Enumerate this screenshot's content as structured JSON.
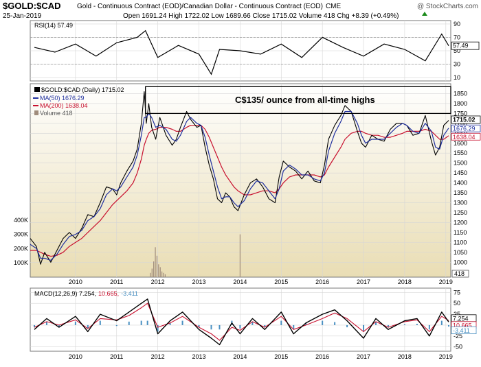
{
  "header": {
    "symbol": "$GOLD:$CAD",
    "description": "Gold - Continuous Contract (EOD)/Canadian Dollar - Continuous Contract (EOD)",
    "exchange": "CME",
    "watermark": "@ StockCharts.com",
    "date": "25-Jan-2019",
    "ohlc": "Open 1691.24 High 1722.02 Low 1689.66 Close 1715.02 Volume 418 Chg +8.39 (+0.49%)",
    "ohlc_arrow": "up-arrow-icon"
  },
  "colors": {
    "price_bg_top": "#ffffff",
    "price_bg_bottom": "#e9ddb4",
    "price_line": "#000000",
    "ma50": "#1f2f9e",
    "ma200": "#c8102e",
    "volume": "#a08c7c",
    "macd_line": "#000000",
    "signal_line": "#c8102e",
    "histogram": "#4a90c2"
  },
  "chart_data": [
    {
      "type": "line",
      "panel": "rsi",
      "legend": "RSI(14) 57.49",
      "current": 57.49,
      "current_label": "57.49",
      "ylim": [
        5,
        95
      ],
      "yticks": [
        {
          "v": 90,
          "label": "90"
        },
        {
          "v": 70,
          "label": "70"
        },
        {
          "v": 50,
          "label": "50"
        },
        {
          "v": 30,
          "label": "30"
        },
        {
          "v": 10,
          "label": "10"
        }
      ],
      "reference_lines": [
        30,
        70
      ],
      "x": [
        2009.0,
        2009.5,
        2010.0,
        2010.5,
        2011.0,
        2011.5,
        2011.7,
        2012.0,
        2012.5,
        2013.0,
        2013.3,
        2013.5,
        2014.0,
        2014.5,
        2015.0,
        2015.5,
        2016.0,
        2016.5,
        2017.0,
        2017.5,
        2018.0,
        2018.5,
        2018.9,
        2019.07
      ],
      "values": [
        55,
        48,
        60,
        42,
        62,
        70,
        80,
        40,
        58,
        45,
        15,
        52,
        50,
        45,
        60,
        40,
        70,
        55,
        42,
        60,
        52,
        35,
        75,
        57.49
      ]
    },
    {
      "type": "line",
      "panel": "price",
      "title": "C$135/ ounce from all-time highs",
      "legend": [
        {
          "key": "price",
          "label": "$GOLD:$CAD (Daily) 1715.02"
        },
        {
          "key": "ma50",
          "label": "MA(50) 1676.29"
        },
        {
          "key": "ma200",
          "label": "MA(200) 1638.04"
        },
        {
          "key": "volume",
          "label": "Volume 418"
        }
      ],
      "price_label": "1715.02",
      "ma50_label": "1676.29",
      "ma200_label": "1638.04",
      "volume_label": "418",
      "last": {
        "price": 1715.02,
        "ma50": 1676.29,
        "ma200": 1638.04
      },
      "resistance_zone": {
        "from": 1750,
        "to": 1885
      },
      "ylim": [
        925,
        1900
      ],
      "yticks": [
        {
          "v": 1850,
          "label": "1850"
        },
        {
          "v": 1800,
          "label": "1800"
        },
        {
          "v": 1750,
          "label": "1750"
        },
        {
          "v": 1700,
          "label": "1700"
        },
        {
          "v": 1650,
          "label": "1650"
        },
        {
          "v": 1600,
          "label": "1600"
        },
        {
          "v": 1550,
          "label": "1550"
        },
        {
          "v": 1500,
          "label": "1500"
        },
        {
          "v": 1450,
          "label": "1450"
        },
        {
          "v": 1400,
          "label": "1400"
        },
        {
          "v": 1350,
          "label": "1350"
        },
        {
          "v": 1300,
          "label": "1300"
        },
        {
          "v": 1250,
          "label": "1250"
        },
        {
          "v": 1200,
          "label": "1200"
        },
        {
          "v": 1150,
          "label": "1150"
        },
        {
          "v": 1100,
          "label": "1100"
        },
        {
          "v": 1050,
          "label": "1050"
        },
        {
          "v": 1000,
          "label": "1000"
        }
      ],
      "x": [
        2008.9,
        2009.05,
        2009.15,
        2009.25,
        2009.4,
        2009.55,
        2009.7,
        2009.85,
        2010.0,
        2010.15,
        2010.3,
        2010.45,
        2010.6,
        2010.75,
        2010.9,
        2011.0,
        2011.1,
        2011.25,
        2011.4,
        2011.5,
        2011.6,
        2011.67,
        2011.72,
        2011.78,
        2011.85,
        2011.95,
        2012.05,
        2012.2,
        2012.35,
        2012.45,
        2012.55,
        2012.7,
        2012.8,
        2012.95,
        2013.05,
        2013.15,
        2013.25,
        2013.35,
        2013.45,
        2013.55,
        2013.65,
        2013.75,
        2013.85,
        2013.95,
        2014.1,
        2014.25,
        2014.4,
        2014.55,
        2014.7,
        2014.85,
        2014.95,
        2015.05,
        2015.2,
        2015.35,
        2015.5,
        2015.65,
        2015.8,
        2015.95,
        2016.05,
        2016.15,
        2016.3,
        2016.45,
        2016.55,
        2016.7,
        2016.85,
        2016.95,
        2017.05,
        2017.2,
        2017.35,
        2017.5,
        2017.65,
        2017.8,
        2017.95,
        2018.05,
        2018.2,
        2018.35,
        2018.5,
        2018.65,
        2018.75,
        2018.85,
        2018.95,
        2019.07
      ],
      "price": [
        1120,
        1080,
        990,
        1050,
        1000,
        1060,
        1120,
        1150,
        1120,
        1170,
        1240,
        1230,
        1300,
        1380,
        1370,
        1340,
        1400,
        1460,
        1510,
        1570,
        1700,
        1860,
        1700,
        1800,
        1680,
        1620,
        1730,
        1640,
        1590,
        1620,
        1680,
        1760,
        1720,
        1680,
        1690,
        1580,
        1490,
        1420,
        1320,
        1300,
        1350,
        1330,
        1280,
        1260,
        1340,
        1400,
        1420,
        1380,
        1320,
        1300,
        1430,
        1510,
        1480,
        1460,
        1420,
        1460,
        1410,
        1400,
        1490,
        1620,
        1690,
        1740,
        1790,
        1760,
        1660,
        1600,
        1580,
        1640,
        1620,
        1610,
        1670,
        1700,
        1700,
        1690,
        1640,
        1650,
        1740,
        1610,
        1540,
        1580,
        1690,
        1715.02
      ],
      "ma50": [
        1090,
        1070,
        1020,
        1020,
        1010,
        1040,
        1090,
        1130,
        1140,
        1160,
        1210,
        1230,
        1270,
        1340,
        1370,
        1360,
        1380,
        1430,
        1480,
        1540,
        1640,
        1730,
        1730,
        1750,
        1730,
        1680,
        1690,
        1670,
        1620,
        1610,
        1640,
        1710,
        1730,
        1700,
        1690,
        1630,
        1540,
        1460,
        1380,
        1320,
        1330,
        1330,
        1300,
        1280,
        1310,
        1370,
        1410,
        1400,
        1360,
        1320,
        1370,
        1460,
        1490,
        1470,
        1440,
        1440,
        1420,
        1410,
        1450,
        1560,
        1650,
        1710,
        1760,
        1760,
        1700,
        1640,
        1600,
        1620,
        1620,
        1620,
        1650,
        1680,
        1700,
        1690,
        1660,
        1650,
        1700,
        1660,
        1580,
        1570,
        1640,
        1676.29
      ],
      "ma200": [
        1060,
        1060,
        1050,
        1040,
        1030,
        1035,
        1050,
        1080,
        1100,
        1120,
        1150,
        1180,
        1210,
        1250,
        1290,
        1310,
        1330,
        1360,
        1400,
        1450,
        1520,
        1590,
        1620,
        1650,
        1665,
        1670,
        1680,
        1680,
        1670,
        1660,
        1660,
        1680,
        1690,
        1690,
        1690,
        1670,
        1630,
        1580,
        1530,
        1480,
        1440,
        1410,
        1380,
        1360,
        1340,
        1340,
        1350,
        1360,
        1360,
        1350,
        1370,
        1400,
        1430,
        1440,
        1440,
        1440,
        1440,
        1430,
        1440,
        1480,
        1530,
        1580,
        1620,
        1650,
        1660,
        1660,
        1650,
        1640,
        1640,
        1630,
        1630,
        1640,
        1650,
        1660,
        1660,
        1660,
        1670,
        1660,
        1640,
        1620,
        1620,
        1638.04
      ]
    },
    {
      "type": "bar",
      "panel": "volume",
      "ylim": [
        0,
        500000
      ],
      "yticks": [
        {
          "v": 400000,
          "label": "400K"
        },
        {
          "v": 300000,
          "label": "300K"
        },
        {
          "v": 200000,
          "label": "200K"
        },
        {
          "v": 100000,
          "label": "100K"
        }
      ],
      "x": [
        2011.82,
        2011.86,
        2011.9,
        2011.94,
        2011.98,
        2012.02,
        2012.06,
        2012.1,
        2012.14,
        2012.18,
        2014.0,
        2019.07
      ],
      "values": [
        30000,
        60000,
        110000,
        210000,
        150000,
        90000,
        70000,
        40000,
        30000,
        20000,
        300000,
        418
      ]
    },
    {
      "type": "line",
      "panel": "macd",
      "legend": [
        {
          "key": "macd",
          "label": "MACD(12,26,9) 7.254,"
        },
        {
          "key": "signal",
          "label": "10.665,"
        },
        {
          "key": "hist",
          "label": "-3.411"
        }
      ],
      "macd_label": "7.254",
      "signal_label": "10.665",
      "hist_label": "-3.411",
      "ylim": [
        -60,
        85
      ],
      "yticks": [
        {
          "v": 75,
          "label": "75"
        },
        {
          "v": 50,
          "label": "50"
        },
        {
          "v": 25,
          "label": "25"
        },
        {
          "v": 0,
          "label": "0"
        },
        {
          "v": -25,
          "label": "-25"
        },
        {
          "v": -50,
          "label": "-50"
        }
      ],
      "x": [
        2009.0,
        2009.3,
        2009.6,
        2010.0,
        2010.3,
        2010.6,
        2011.0,
        2011.3,
        2011.6,
        2011.75,
        2012.0,
        2012.3,
        2012.6,
        2013.0,
        2013.3,
        2013.5,
        2013.8,
        2014.0,
        2014.3,
        2014.6,
        2015.0,
        2015.3,
        2015.6,
        2016.0,
        2016.3,
        2016.6,
        2017.0,
        2017.3,
        2017.6,
        2018.0,
        2018.3,
        2018.6,
        2018.9,
        2019.07
      ],
      "macd": [
        -10,
        15,
        -5,
        20,
        -15,
        25,
        10,
        30,
        50,
        60,
        -20,
        10,
        30,
        -10,
        -30,
        -45,
        5,
        -20,
        15,
        -10,
        30,
        -20,
        5,
        25,
        35,
        10,
        -30,
        15,
        -10,
        10,
        15,
        -25,
        30,
        7.254
      ],
      "signal": [
        -5,
        8,
        0,
        12,
        -8,
        15,
        12,
        22,
        40,
        50,
        -5,
        5,
        20,
        -5,
        -20,
        -35,
        -5,
        -12,
        8,
        -5,
        20,
        -10,
        0,
        15,
        28,
        15,
        -15,
        8,
        -5,
        8,
        12,
        -15,
        20,
        10.665
      ]
    }
  ],
  "x_axis": {
    "xlim": [
      2008.9,
      2019.12
    ],
    "labels": [
      {
        "v": 2010.0,
        "label": "2010"
      },
      {
        "v": 2011.0,
        "label": "2011"
      },
      {
        "v": 2012.0,
        "label": "2012"
      },
      {
        "v": 2013.0,
        "label": "2013"
      },
      {
        "v": 2014.0,
        "label": "2014"
      },
      {
        "v": 2015.0,
        "label": "2015"
      },
      {
        "v": 2016.0,
        "label": "2016"
      },
      {
        "v": 2017.0,
        "label": "2017"
      },
      {
        "v": 2018.0,
        "label": "2018"
      },
      {
        "v": 2019.0,
        "label": "2019"
      }
    ]
  }
}
